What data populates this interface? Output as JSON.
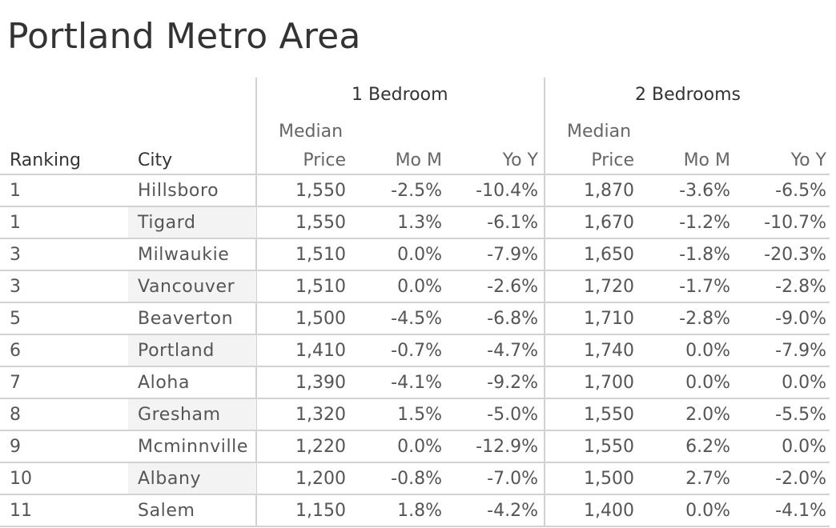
{
  "title": "Portland Metro Area",
  "headers": {
    "groups": [
      "1 Bedroom",
      "2 Bedrooms"
    ],
    "row_headers": [
      "Ranking",
      "City"
    ],
    "col_line1": [
      "Median",
      "",
      "",
      "Median",
      "",
      ""
    ],
    "col_line2": [
      "Price",
      "Mo M",
      "Yo Y",
      "Price",
      "Mo M",
      "Yo Y"
    ]
  },
  "chart_data": {
    "type": "table",
    "title": "Portland Metro Area",
    "column_groups": [
      "1 Bedroom",
      "2 Bedrooms"
    ],
    "columns": [
      "Ranking",
      "City",
      "1 Bedroom Median Price",
      "1 Bedroom Mo M",
      "1 Bedroom Yo Y",
      "2 Bedrooms Median Price",
      "2 Bedrooms Mo M",
      "2 Bedrooms Yo Y"
    ],
    "rows": [
      [
        "1",
        "Hillsboro",
        "1,550",
        "-2.5%",
        "-10.4%",
        "1,870",
        "-3.6%",
        "-6.5%"
      ],
      [
        "1",
        "Tigard",
        "1,550",
        "1.3%",
        "-6.1%",
        "1,670",
        "-1.2%",
        "-10.7%"
      ],
      [
        "3",
        "Milwaukie",
        "1,510",
        "0.0%",
        "-7.9%",
        "1,650",
        "-1.8%",
        "-20.3%"
      ],
      [
        "3",
        "Vancouver",
        "1,510",
        "0.0%",
        "-2.6%",
        "1,720",
        "-1.7%",
        "-2.8%"
      ],
      [
        "5",
        "Beaverton",
        "1,500",
        "-4.5%",
        "-6.8%",
        "1,710",
        "-2.8%",
        "-9.0%"
      ],
      [
        "6",
        "Portland",
        "1,410",
        "-0.7%",
        "-4.7%",
        "1,740",
        "0.0%",
        "-7.9%"
      ],
      [
        "7",
        "Aloha",
        "1,390",
        "-4.1%",
        "-9.2%",
        "1,700",
        "0.0%",
        "0.0%"
      ],
      [
        "8",
        "Gresham",
        "1,320",
        "1.5%",
        "-5.0%",
        "1,550",
        "2.0%",
        "-5.5%"
      ],
      [
        "9",
        "Mcminnville",
        "1,220",
        "0.0%",
        "-12.9%",
        "1,550",
        "6.2%",
        "0.0%"
      ],
      [
        "10",
        "Albany",
        "1,200",
        "-0.8%",
        "-7.0%",
        "1,500",
        "2.7%",
        "-2.0%"
      ],
      [
        "11",
        "Salem",
        "1,150",
        "1.8%",
        "-4.2%",
        "1,400",
        "0.0%",
        "-4.1%"
      ]
    ]
  }
}
